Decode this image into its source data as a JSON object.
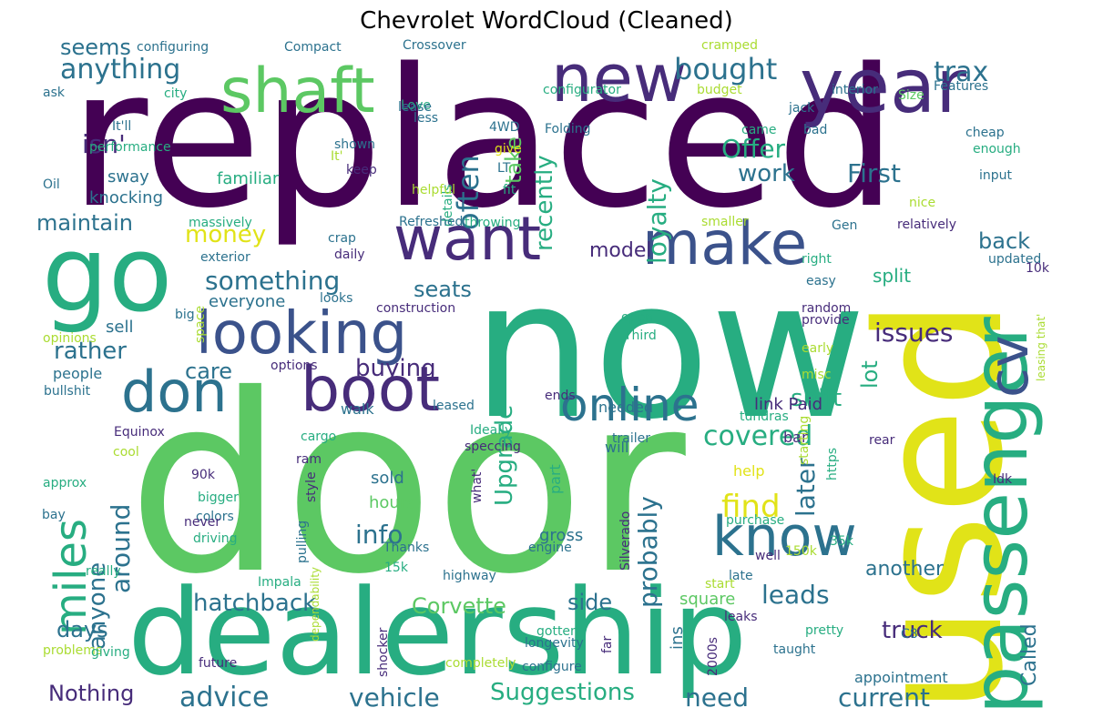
{
  "title": "Chevrolet WordCloud (Cleaned)",
  "palette": {
    "purple": "#440154",
    "indigo": "#472c7a",
    "blue": "#3b528b",
    "steel": "#2c728e",
    "teal": "#21908d",
    "green": "#27ad81",
    "lime": "#5cc863",
    "yellowgreen": "#aadc32",
    "yellow": "#e1e318"
  },
  "words": [
    {
      "t": "replaced",
      "c": "purple"
    },
    {
      "t": "door",
      "c": "lime"
    },
    {
      "t": "now",
      "c": "green"
    },
    {
      "t": "used",
      "c": "yellow"
    },
    {
      "t": "dealership",
      "c": "green"
    },
    {
      "t": "go",
      "c": "green"
    },
    {
      "t": "passenger",
      "c": "green"
    },
    {
      "t": "year",
      "c": "indigo"
    },
    {
      "t": "new",
      "c": "indigo"
    },
    {
      "t": "shaft",
      "c": "lime"
    },
    {
      "t": "want",
      "c": "indigo"
    },
    {
      "t": "make",
      "c": "blue"
    },
    {
      "t": "looking",
      "c": "blue"
    },
    {
      "t": "boot",
      "c": "indigo"
    },
    {
      "t": "don",
      "c": "steel"
    },
    {
      "t": "know",
      "c": "steel"
    },
    {
      "t": "online",
      "c": "steel"
    },
    {
      "t": "miles",
      "c": "green"
    },
    {
      "t": "cv",
      "c": "blue"
    },
    {
      "t": "anything",
      "c": "steel"
    },
    {
      "t": "seems",
      "c": "steel"
    },
    {
      "t": "bought",
      "c": "steel"
    },
    {
      "t": "trax",
      "c": "steel"
    },
    {
      "t": "take",
      "c": "lime"
    },
    {
      "t": "often",
      "c": "steel"
    },
    {
      "t": "recently",
      "c": "green"
    },
    {
      "t": "loyalty",
      "c": "green"
    },
    {
      "t": "isn'",
      "c": "indigo"
    },
    {
      "t": "Offer",
      "c": "green"
    },
    {
      "t": "work",
      "c": "steel"
    },
    {
      "t": "First",
      "c": "steel"
    },
    {
      "t": "maintain",
      "c": "steel"
    },
    {
      "t": "money",
      "c": "yellow"
    },
    {
      "t": "something",
      "c": "steel"
    },
    {
      "t": "model",
      "c": "indigo"
    },
    {
      "t": "seats",
      "c": "steel"
    },
    {
      "t": "back",
      "c": "steel"
    },
    {
      "t": "issues",
      "c": "indigo"
    },
    {
      "t": "lot",
      "c": "green"
    },
    {
      "t": "rather",
      "c": "steel"
    },
    {
      "t": "buying",
      "c": "indigo"
    },
    {
      "t": "care",
      "c": "steel"
    },
    {
      "t": "Upgrade",
      "c": "green"
    },
    {
      "t": "shift",
      "c": "green"
    },
    {
      "t": "covered",
      "c": "green"
    },
    {
      "t": "find",
      "c": "yellow"
    },
    {
      "t": "later",
      "c": "steel"
    },
    {
      "t": "probably",
      "c": "steel"
    },
    {
      "t": "around",
      "c": "steel"
    },
    {
      "t": "anyone",
      "c": "steel"
    },
    {
      "t": "info",
      "c": "steel"
    },
    {
      "t": "another",
      "c": "steel"
    },
    {
      "t": "leads",
      "c": "steel"
    },
    {
      "t": "Called",
      "c": "steel"
    },
    {
      "t": "hatchback",
      "c": "steel"
    },
    {
      "t": "Corvette",
      "c": "lime"
    },
    {
      "t": "side",
      "c": "steel"
    },
    {
      "t": "truck",
      "c": "indigo"
    },
    {
      "t": "days",
      "c": "steel"
    },
    {
      "t": "Nothing",
      "c": "indigo"
    },
    {
      "t": "advice",
      "c": "steel"
    },
    {
      "t": "vehicle",
      "c": "steel"
    },
    {
      "t": "Suggestions",
      "c": "green"
    },
    {
      "t": "need",
      "c": "steel"
    },
    {
      "t": "current",
      "c": "steel"
    },
    {
      "t": "appointment",
      "c": "steel"
    },
    {
      "t": "familiar",
      "c": "green"
    },
    {
      "t": "sway",
      "c": "steel"
    },
    {
      "t": "knocking",
      "c": "steel"
    },
    {
      "t": "everyone",
      "c": "steel"
    },
    {
      "t": "sell",
      "c": "steel"
    },
    {
      "t": "people",
      "c": "steel"
    },
    {
      "t": "walk",
      "c": "steel"
    },
    {
      "t": "needed",
      "c": "steel"
    },
    {
      "t": "will",
      "c": "steel"
    },
    {
      "t": "link Paid",
      "c": "indigo"
    },
    {
      "t": "split",
      "c": "green"
    },
    {
      "t": "sold",
      "c": "steel"
    },
    {
      "t": "hours",
      "c": "lime"
    },
    {
      "t": "gross",
      "c": "steel"
    },
    {
      "t": "help",
      "c": "yellow"
    },
    {
      "t": "square",
      "c": "lime"
    },
    {
      "t": "ends",
      "c": "indigo"
    },
    {
      "t": "bar",
      "c": "indigo"
    },
    {
      "t": "part",
      "c": "green"
    },
    {
      "t": "ins",
      "c": "steel"
    },
    {
      "t": "configuring",
      "c": "steel"
    },
    {
      "t": "Compact",
      "c": "steel"
    },
    {
      "t": "Crossover",
      "c": "steel"
    },
    {
      "t": "cramped",
      "c": "yellowgreen"
    },
    {
      "t": "Features",
      "c": "steel"
    },
    {
      "t": "ask",
      "c": "steel"
    },
    {
      "t": "city",
      "c": "green"
    },
    {
      "t": "Love",
      "c": "green"
    },
    {
      "t": "configurator",
      "c": "green"
    },
    {
      "t": "budget",
      "c": "yellowgreen"
    },
    {
      "t": "interior",
      "c": "steel"
    },
    {
      "t": "Size",
      "c": "lime"
    },
    {
      "t": "lease",
      "c": "steel"
    },
    {
      "t": "less",
      "c": "steel"
    },
    {
      "t": "jack",
      "c": "steel"
    },
    {
      "t": "It'll",
      "c": "steel"
    },
    {
      "t": "4WD",
      "c": "steel"
    },
    {
      "t": "Folding",
      "c": "steel"
    },
    {
      "t": "came",
      "c": "green"
    },
    {
      "t": "bad",
      "c": "steel"
    },
    {
      "t": "cheap",
      "c": "steel"
    },
    {
      "t": "enough",
      "c": "green"
    },
    {
      "t": "shown",
      "c": "steel"
    },
    {
      "t": "It'",
      "c": "yellowgreen"
    },
    {
      "t": "give",
      "c": "yellow"
    },
    {
      "t": "performance",
      "c": "green"
    },
    {
      "t": "LT",
      "c": "steel"
    },
    {
      "t": "input",
      "c": "steel"
    },
    {
      "t": "Oil",
      "c": "steel"
    },
    {
      "t": "keep",
      "c": "indigo"
    },
    {
      "t": "details",
      "c": "green"
    },
    {
      "t": "helpful",
      "c": "yellowgreen"
    },
    {
      "t": "fit",
      "c": "green"
    },
    {
      "t": "nice",
      "c": "yellowgreen"
    },
    {
      "t": "massively",
      "c": "green"
    },
    {
      "t": "Refreshed",
      "c": "steel"
    },
    {
      "t": "throwing",
      "c": "green"
    },
    {
      "t": "smaller",
      "c": "yellowgreen"
    },
    {
      "t": "Gen",
      "c": "steel"
    },
    {
      "t": "relatively",
      "c": "indigo"
    },
    {
      "t": "crap",
      "c": "steel"
    },
    {
      "t": "daily",
      "c": "indigo"
    },
    {
      "t": "exterior",
      "c": "steel"
    },
    {
      "t": "right",
      "c": "green"
    },
    {
      "t": "updated",
      "c": "steel"
    },
    {
      "t": "easy",
      "c": "steel"
    },
    {
      "t": "10k",
      "c": "indigo"
    },
    {
      "t": "looks",
      "c": "steel"
    },
    {
      "t": "construction",
      "c": "indigo"
    },
    {
      "t": "random",
      "c": "indigo"
    },
    {
      "t": "leasing that'",
      "c": "yellowgreen"
    },
    {
      "t": "provide",
      "c": "indigo"
    },
    {
      "t": "big",
      "c": "steel"
    },
    {
      "t": "space",
      "c": "yellowgreen"
    },
    {
      "t": "open",
      "c": "green"
    },
    {
      "t": "Third",
      "c": "green"
    },
    {
      "t": "opinions",
      "c": "yellowgreen"
    },
    {
      "t": "early",
      "c": "yellowgreen"
    },
    {
      "t": "options",
      "c": "indigo"
    },
    {
      "t": "misc",
      "c": "yellowgreen"
    },
    {
      "t": "bullshit",
      "c": "steel"
    },
    {
      "t": "leased",
      "c": "steel"
    },
    {
      "t": "tundras",
      "c": "green"
    },
    {
      "t": "Equinox",
      "c": "indigo"
    },
    {
      "t": "Ideally",
      "c": "green"
    },
    {
      "t": "cargo",
      "c": "green"
    },
    {
      "t": "trailer",
      "c": "steel"
    },
    {
      "t": "starting",
      "c": "yellowgreen"
    },
    {
      "t": "rear",
      "c": "indigo"
    },
    {
      "t": "cool",
      "c": "yellowgreen"
    },
    {
      "t": "ram",
      "c": "indigo"
    },
    {
      "t": "speccing",
      "c": "indigo"
    },
    {
      "t": "approx",
      "c": "green"
    },
    {
      "t": "90k",
      "c": "indigo"
    },
    {
      "t": "style",
      "c": "indigo"
    },
    {
      "t": "what'",
      "c": "indigo"
    },
    {
      "t": "https",
      "c": "green"
    },
    {
      "t": "Idk",
      "c": "indigo"
    },
    {
      "t": "bigger",
      "c": "green"
    },
    {
      "t": "pulling",
      "c": "steel"
    },
    {
      "t": "bay",
      "c": "steel"
    },
    {
      "t": "colors",
      "c": "steel"
    },
    {
      "t": "Silverado",
      "c": "indigo"
    },
    {
      "t": "purchase",
      "c": "green"
    },
    {
      "t": "35k",
      "c": "green"
    },
    {
      "t": "never",
      "c": "indigo"
    },
    {
      "t": "driving",
      "c": "green"
    },
    {
      "t": "dependability",
      "c": "yellowgreen"
    },
    {
      "t": "Thanks",
      "c": "steel"
    },
    {
      "t": "engine",
      "c": "steel"
    },
    {
      "t": "well",
      "c": "indigo"
    },
    {
      "t": "150k",
      "c": "yellowgreen"
    },
    {
      "t": "15k",
      "c": "green"
    },
    {
      "t": "Impala",
      "c": "green"
    },
    {
      "t": "highway",
      "c": "steel"
    },
    {
      "t": "late",
      "c": "steel"
    },
    {
      "t": "really",
      "c": "green"
    },
    {
      "t": "start",
      "c": "yellowgreen"
    },
    {
      "t": "shocker",
      "c": "indigo"
    },
    {
      "t": "leaks",
      "c": "indigo"
    },
    {
      "t": "pretty",
      "c": "green"
    },
    {
      "t": "C8",
      "c": "steel"
    },
    {
      "t": "gotten",
      "c": "green"
    },
    {
      "t": "problems",
      "c": "yellowgreen"
    },
    {
      "t": "2000s",
      "c": "indigo"
    },
    {
      "t": "giving",
      "c": "green"
    },
    {
      "t": "longevity",
      "c": "steel"
    },
    {
      "t": "far",
      "c": "indigo"
    },
    {
      "t": "taught",
      "c": "steel"
    },
    {
      "t": "future",
      "c": "indigo"
    },
    {
      "t": "completely",
      "c": "yellowgreen"
    },
    {
      "t": "configure",
      "c": "steel"
    }
  ]
}
